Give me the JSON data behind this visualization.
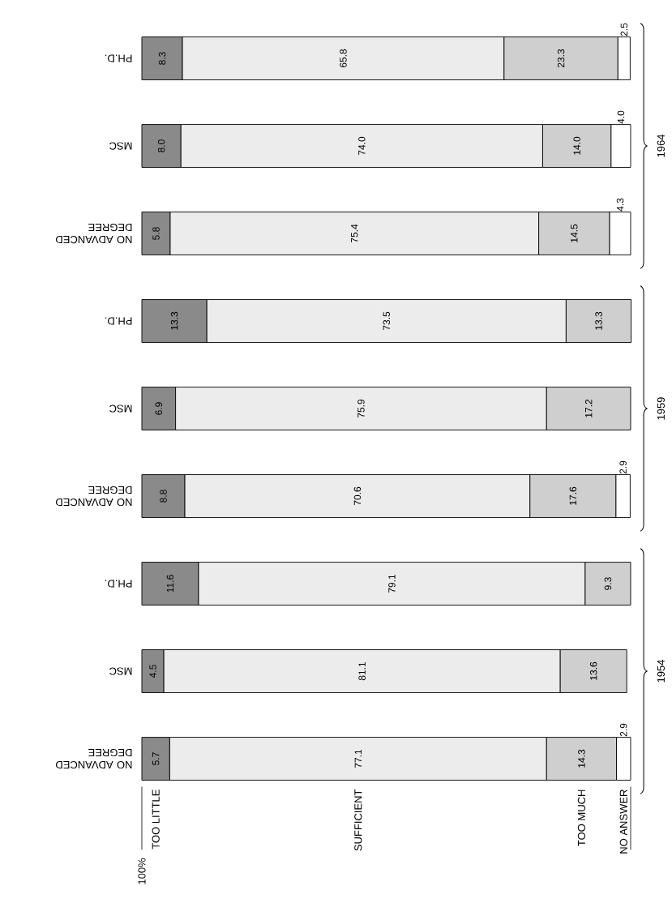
{
  "chart_data": {
    "type": "bar",
    "orientation": "horizontal",
    "stacked": true,
    "legend": "bottom",
    "categories": [
      "PH.D.",
      "MSC",
      "NO ADVANCED DEGREE",
      "PH.D.",
      "MSC",
      "NO ADVANCED DEGREE",
      "PH.D.",
      "MSC",
      "NO ADVANCED DEGREE"
    ],
    "xlim": [
      0,
      100
    ],
    "series": [
      {
        "name": "TOO LITTLE",
        "color": "#8a8a8a",
        "values": [
          8.3,
          8.0,
          5.8,
          13.3,
          6.9,
          8.8,
          11.6,
          4.5,
          5.7
        ],
        "value_labels": [
          "8.3",
          "8.0",
          "5.8",
          "13.3",
          "6.9",
          "8.8",
          "11.6",
          "4.5",
          "5.7"
        ]
      },
      {
        "name": "SUFFICIENT",
        "color": "#ececec",
        "values": [
          65.8,
          74.0,
          75.4,
          73.5,
          75.9,
          70.6,
          79.1,
          81.1,
          77.1
        ],
        "value_labels": [
          "65.8",
          "74.0",
          "75.4",
          "73.5",
          "75.9",
          "70.6",
          "79.1",
          "81.1",
          "77.1"
        ]
      },
      {
        "name": "TOO MUCH",
        "color": "#cfcfcf",
        "values": [
          23.3,
          14.0,
          14.5,
          13.3,
          17.2,
          17.6,
          9.3,
          13.6,
          14.3
        ],
        "value_labels": [
          "23.3",
          "14.0",
          "14.5",
          "13.3",
          "17.2",
          "17.6",
          "9.3",
          "13.6",
          "14.3"
        ]
      },
      {
        "name": "NO ANSWER",
        "color": "#ffffff",
        "values": [
          2.5,
          4.0,
          4.3,
          null,
          null,
          2.9,
          null,
          null,
          2.9
        ],
        "value_labels": [
          "2.5",
          "4.0",
          "4.3",
          null,
          null,
          "2.9",
          null,
          null,
          "2.9"
        ]
      }
    ],
    "annotations": [
      "1964",
      "1959",
      "1954",
      "100%"
    ]
  }
}
